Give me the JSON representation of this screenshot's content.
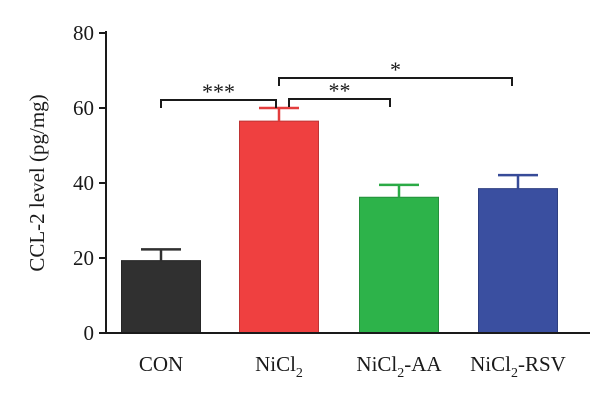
{
  "chart_data": {
    "type": "bar",
    "title": "",
    "xlabel": "",
    "ylabel": "CCL-2 level (pg/mg)",
    "ylim": [
      0,
      80
    ],
    "yticks": [
      "0",
      "20",
      "40",
      "60",
      "80"
    ],
    "grid": false,
    "categories": [
      {
        "main": "CON",
        "sub": "",
        "suffix": ""
      },
      {
        "main": "NiCl",
        "sub": "2",
        "suffix": ""
      },
      {
        "main": "NiCl",
        "sub": "2",
        "suffix": "-AA"
      },
      {
        "main": "NiCl",
        "sub": "2",
        "suffix": "-RSV"
      }
    ],
    "values": [
      19.3,
      56.5,
      36.2,
      38.5
    ],
    "errors": [
      3.0,
      3.5,
      3.3,
      3.6
    ],
    "colors": [
      "#303030",
      "#ef4040",
      "#2db34a",
      "#3a4fa0"
    ],
    "significance": [
      {
        "from": 0,
        "to": 1,
        "label": "***",
        "y": 62
      },
      {
        "from": 1,
        "to": 3,
        "label": "*",
        "y": 68
      },
      {
        "from": 1,
        "to": 2,
        "label": "**",
        "y": 62
      }
    ]
  }
}
